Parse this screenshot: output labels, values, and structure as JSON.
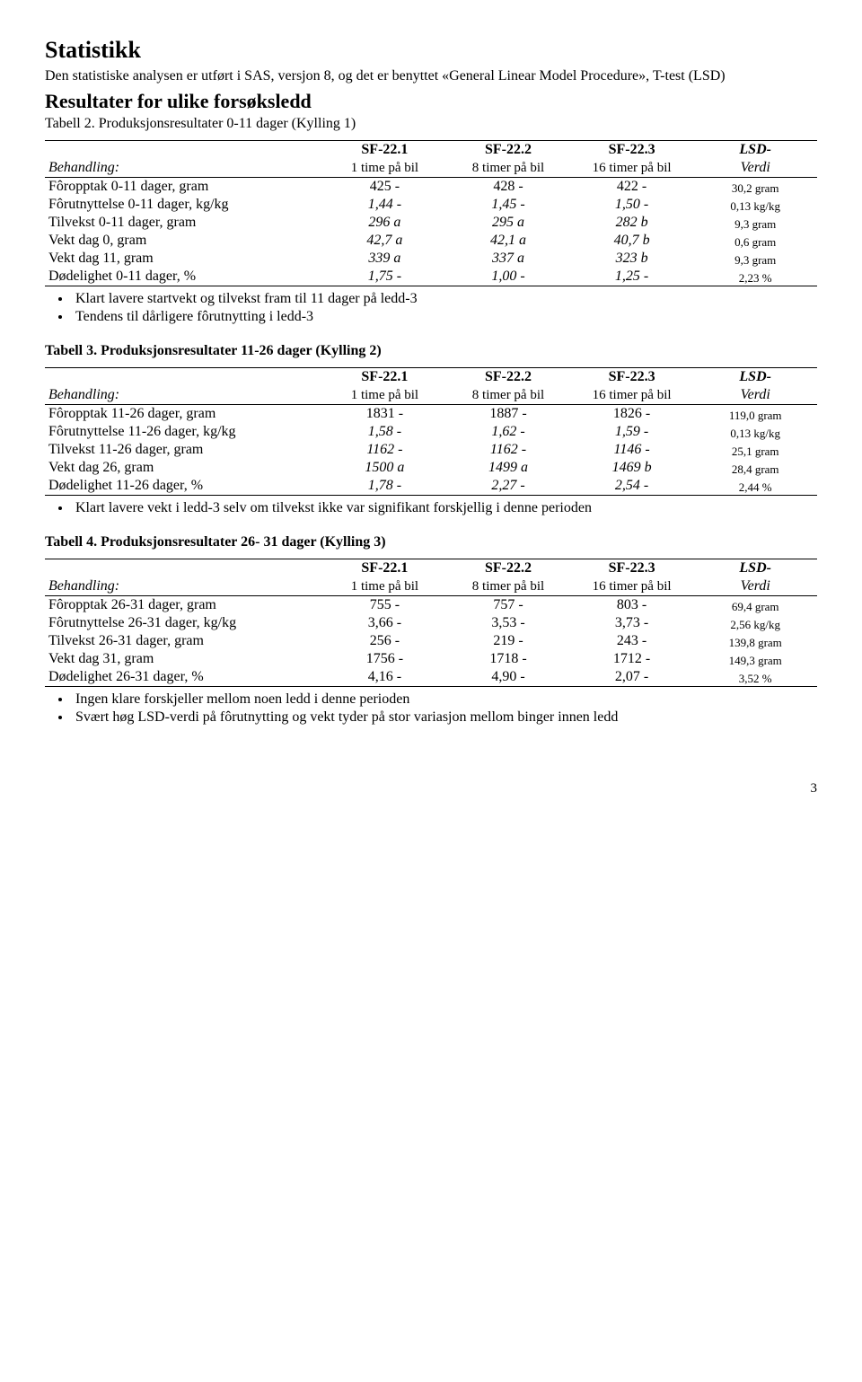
{
  "headings": {
    "stat": "Statistikk",
    "intro": "Den statistiske analysen er utført i SAS, versjon 8, og det er benyttet «General Linear Model Procedure», T-test (LSD)",
    "results": "Resultater for ulike forsøksledd"
  },
  "column_headers": {
    "behandling": "Behandling:",
    "sf1": "SF-22.1",
    "sf2": "SF-22.2",
    "sf3": "SF-22.3",
    "lsd": "LSD-",
    "sub1": "1 time på bil",
    "sub2": "8 timer på bil",
    "sub3": "16 timer på bil",
    "sub3_alt": "16 timer  på bil",
    "sub4": "Verdi"
  },
  "table2": {
    "caption": "Tabell 2. Produksjonsresultater 0-11 dager (Kylling 1)",
    "rows": [
      {
        "label": "Fôropptak 0-11 dager, gram",
        "c1": "425 -",
        "c2": "428 -",
        "c3": "422 -",
        "lsd": "30,2 gram",
        "italic": false
      },
      {
        "label": "Fôrutnyttelse 0-11 dager, kg/kg",
        "c1": "1,44 -",
        "c2": "1,45 -",
        "c3": "1,50 -",
        "lsd": "0,13 kg/kg",
        "italic": true
      },
      {
        "label": "Tilvekst 0-11 dager, gram",
        "c1": "296 a",
        "c2": "295 a",
        "c3": "282 b",
        "lsd": "9,3 gram",
        "italic": true
      },
      {
        "label": "Vekt dag 0, gram",
        "c1": "42,7 a",
        "c2": "42,1 a",
        "c3": "40,7 b",
        "lsd": "0,6 gram",
        "italic": true
      },
      {
        "label": "Vekt dag 11, gram",
        "c1": "339 a",
        "c2": "337 a",
        "c3": "323 b",
        "lsd": "9,3 gram",
        "italic": true
      },
      {
        "label": "Dødelighet 0-11 dager, %",
        "c1": "1,75 -",
        "c2": "1,00 -",
        "c3": "1,25 -",
        "lsd": "2,23 %",
        "italic": true
      }
    ],
    "bullets": [
      "Klart lavere startvekt og tilvekst fram til 11 dager på ledd-3",
      "Tendens til dårligere fôrutnytting i ledd-3"
    ]
  },
  "table3": {
    "caption": "Tabell 3. Produksjonsresultater 11-26 dager (Kylling 2)",
    "rows": [
      {
        "label": "Fôropptak 11-26 dager, gram",
        "c1": "1831 -",
        "c2": "1887 -",
        "c3": "1826 -",
        "lsd": "119,0 gram",
        "italic": false
      },
      {
        "label": "Fôrutnyttelse 11-26 dager, kg/kg",
        "c1": "1,58 -",
        "c2": "1,62 -",
        "c3": "1,59 -",
        "lsd": "0,13 kg/kg",
        "italic": true
      },
      {
        "label": "Tilvekst 11-26 dager, gram",
        "c1": "1162 -",
        "c2": "1162 -",
        "c3": "1146 -",
        "lsd": "25,1 gram",
        "italic": true
      },
      {
        "label": "Vekt dag 26, gram",
        "c1": "1500 a",
        "c2": "1499 a",
        "c3": "1469 b",
        "lsd": "28,4 gram",
        "italic": true
      },
      {
        "label": "Dødelighet 11-26 dager, %",
        "c1": "1,78 -",
        "c2": "2,27 -",
        "c3": "2,54 -",
        "lsd": "2,44 %",
        "italic": true
      }
    ],
    "bullets": [
      "Klart lavere vekt i ledd-3 selv om tilvekst ikke var signifikant forskjellig i denne perioden"
    ]
  },
  "table4": {
    "caption": "Tabell 4. Produksjonsresultater 26- 31 dager (Kylling 3)",
    "rows": [
      {
        "label": "Fôropptak 26-31 dager, gram",
        "c1": "755 -",
        "c2": "757 -",
        "c3": "803 -",
        "lsd": "69,4 gram",
        "italic": false
      },
      {
        "label": "Fôrutnyttelse 26-31 dager, kg/kg",
        "c1": "3,66 -",
        "c2": "3,53 -",
        "c3": "3,73 -",
        "lsd": "2,56 kg/kg",
        "italic": false
      },
      {
        "label": "Tilvekst 26-31 dager, gram",
        "c1": "256 -",
        "c2": "219 -",
        "c3": "243 -",
        "lsd": "139,8 gram",
        "italic": false
      },
      {
        "label": "Vekt dag 31, gram",
        "c1": "1756 -",
        "c2": "1718 -",
        "c3": "1712 -",
        "lsd": "149,3 gram",
        "italic": false
      },
      {
        "label": "Dødelighet 26-31 dager, %",
        "c1": "4,16 -",
        "c2": "4,90 -",
        "c3": "2,07 -",
        "lsd": "3,52 %",
        "italic": false
      }
    ],
    "bullets": [
      "Ingen klare forskjeller mellom noen ledd i denne perioden",
      "Svært høg LSD-verdi på fôrutnytting og vekt tyder på stor variasjon mellom binger innen ledd"
    ]
  },
  "page_number": "3"
}
